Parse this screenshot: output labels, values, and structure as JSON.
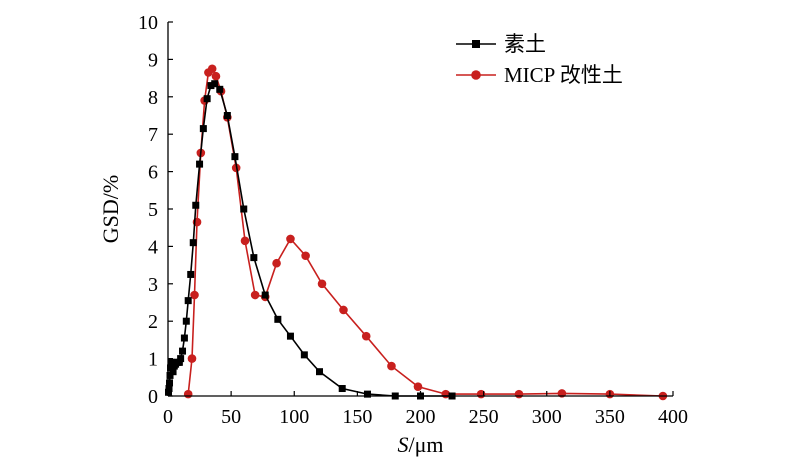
{
  "chart_data": {
    "type": "line",
    "title": "",
    "xlabel_italic": "S",
    "xlabel_unit": "/μm",
    "ylabel": "GSD/%",
    "xlim": [
      0,
      400
    ],
    "ylim": [
      0,
      10
    ],
    "xticks": [
      0,
      50,
      100,
      150,
      200,
      250,
      300,
      350,
      400
    ],
    "yticks": [
      0,
      1,
      2,
      3,
      4,
      5,
      6,
      7,
      8,
      9,
      10
    ],
    "grid": false,
    "legend_position": "top-right",
    "series": [
      {
        "name": "素土",
        "color": "#000000",
        "marker": "square",
        "x": [
          0.4,
          0.8,
          1.2,
          1.6,
          2.0,
          2.5,
          3.0,
          3.5,
          4.0,
          5.0,
          6.0,
          7.0,
          8.0,
          9.0,
          10.0,
          11.5,
          13.0,
          14.5,
          16.0,
          18.0,
          20.0,
          22.0,
          25.0,
          28.0,
          31.0,
          34.0,
          37.0,
          41.0,
          47.0,
          53.0,
          60.0,
          68.0,
          77.0,
          87.0,
          97.0,
          108.0,
          120.0,
          138.0,
          158.0,
          180.0,
          200.0,
          225.0
        ],
        "y": [
          0.1,
          0.2,
          0.35,
          0.55,
          0.75,
          0.9,
          0.9,
          0.75,
          0.65,
          0.8,
          0.85,
          0.9,
          0.9,
          0.9,
          1.0,
          1.2,
          1.55,
          2.0,
          2.55,
          3.25,
          4.1,
          5.1,
          6.2,
          7.15,
          7.95,
          8.3,
          8.35,
          8.2,
          7.5,
          6.4,
          5.0,
          3.7,
          2.7,
          2.05,
          1.6,
          1.1,
          0.65,
          0.2,
          0.05,
          0.0,
          0.0,
          0.0
        ]
      },
      {
        "name": "MICP 改性土",
        "color": "#c8201e",
        "marker": "circle",
        "x": [
          16.0,
          19.0,
          21.0,
          23.0,
          26.0,
          29.0,
          32.0,
          35.0,
          38.0,
          42.0,
          47.0,
          54.0,
          61.0,
          69.0,
          77.0,
          86.0,
          97.0,
          109.0,
          122.0,
          139.0,
          157.0,
          177.0,
          198.0,
          220.0,
          248.0,
          278.0,
          312.0,
          350.0,
          392.0
        ],
        "y": [
          0.05,
          1.0,
          2.7,
          4.65,
          6.5,
          7.9,
          8.65,
          8.75,
          8.55,
          8.15,
          7.45,
          6.1,
          4.15,
          2.7,
          2.65,
          3.55,
          4.2,
          3.75,
          3.0,
          2.3,
          1.6,
          0.8,
          0.25,
          0.05,
          0.05,
          0.05,
          0.07,
          0.05,
          0.0
        ]
      }
    ]
  }
}
